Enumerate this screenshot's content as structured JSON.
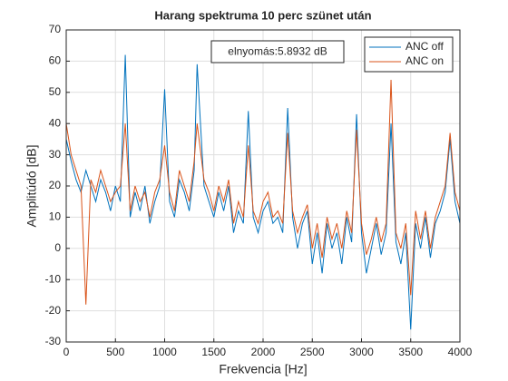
{
  "chart_data": {
    "type": "line",
    "title": "Harang spektruma 10 perc szünet után",
    "annotation": "elnyomás:5.8932 dB",
    "xlabel": "Frekvencia [Hz]",
    "ylabel": "Amplitúdó [dB]",
    "xlim": [
      0,
      4000
    ],
    "ylim": [
      -30,
      70
    ],
    "xticks": [
      0,
      500,
      1000,
      1500,
      2000,
      2500,
      3000,
      3500,
      4000
    ],
    "yticks": [
      -30,
      -20,
      -10,
      0,
      10,
      20,
      30,
      40,
      50,
      60,
      70
    ],
    "grid": true,
    "legend": "upper right",
    "x": [
      0,
      50,
      100,
      150,
      200,
      250,
      300,
      350,
      400,
      450,
      500,
      550,
      600,
      650,
      700,
      750,
      800,
      850,
      900,
      950,
      1000,
      1050,
      1100,
      1150,
      1200,
      1250,
      1300,
      1330,
      1400,
      1450,
      1500,
      1550,
      1600,
      1650,
      1700,
      1750,
      1800,
      1850,
      1900,
      1950,
      2000,
      2050,
      2100,
      2150,
      2200,
      2250,
      2300,
      2350,
      2400,
      2450,
      2500,
      2550,
      2600,
      2650,
      2700,
      2750,
      2800,
      2850,
      2900,
      2950,
      3000,
      3050,
      3100,
      3150,
      3200,
      3250,
      3300,
      3350,
      3400,
      3450,
      3500,
      3550,
      3600,
      3650,
      3700,
      3750,
      3800,
      3850,
      3900,
      3950,
      4000
    ],
    "series": [
      {
        "name": "ANC off",
        "color": "#0072BD",
        "values": [
          35,
          28,
          22,
          18,
          25,
          20,
          15,
          22,
          18,
          12,
          20,
          15,
          62,
          10,
          18,
          12,
          20,
          8,
          15,
          20,
          51,
          15,
          10,
          22,
          18,
          12,
          25,
          59,
          20,
          15,
          10,
          18,
          12,
          20,
          5,
          12,
          8,
          44,
          10,
          5,
          12,
          15,
          8,
          10,
          5,
          45,
          10,
          0,
          8,
          12,
          -5,
          5,
          -8,
          8,
          0,
          5,
          -5,
          10,
          2,
          43,
          5,
          -8,
          0,
          8,
          -2,
          5,
          40,
          2,
          -5,
          5,
          -26,
          8,
          0,
          10,
          -3,
          8,
          12,
          18,
          35,
          15,
          8
        ]
      },
      {
        "name": "ANC on",
        "color": "#D95319",
        "values": [
          40,
          30,
          25,
          20,
          -18,
          22,
          18,
          25,
          20,
          15,
          18,
          20,
          40,
          12,
          20,
          15,
          18,
          10,
          18,
          22,
          33,
          18,
          12,
          25,
          20,
          15,
          28,
          40,
          22,
          18,
          12,
          20,
          15,
          22,
          8,
          15,
          10,
          33,
          12,
          8,
          15,
          18,
          10,
          12,
          8,
          37,
          12,
          5,
          10,
          14,
          0,
          8,
          -3,
          10,
          3,
          8,
          0,
          12,
          5,
          38,
          8,
          -2,
          3,
          10,
          2,
          8,
          54,
          5,
          0,
          8,
          -15,
          12,
          3,
          12,
          0,
          10,
          15,
          20,
          37,
          18,
          12
        ]
      }
    ]
  }
}
